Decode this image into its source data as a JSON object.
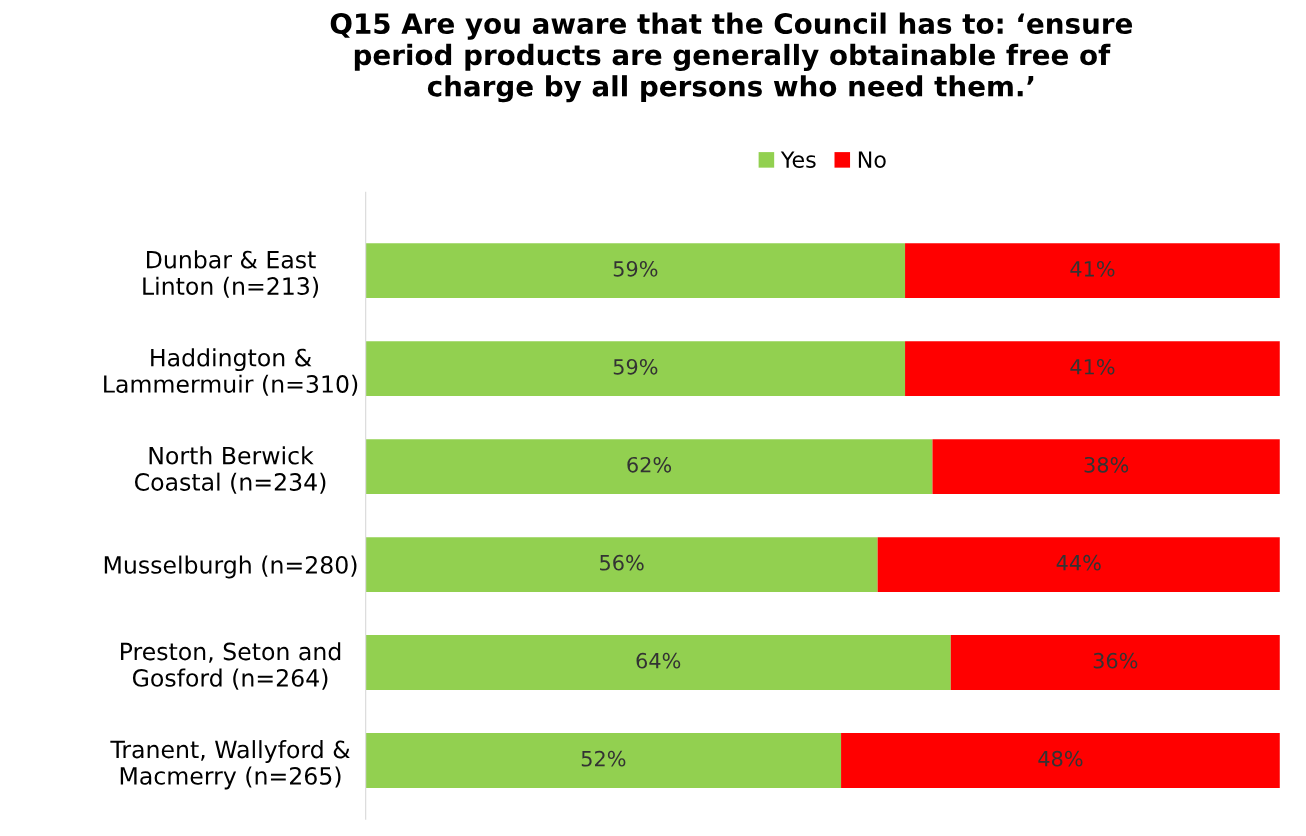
{
  "chart_data": {
    "type": "bar",
    "orientation": "horizontal",
    "stacked": true,
    "title": "Q15 Are you aware that the Council has to: ‘ensure\nperiod products are generally obtainable free of\ncharge by all persons who need them.’",
    "categories": [
      "Dunbar & East\nLinton (n=213)",
      "Haddington &\nLammermuir (n=310)",
      "North Berwick\nCoastal (n=234)",
      "Musselburgh (n=280)",
      "Preston, Seton and\nGosford (n=264)",
      "Tranent, Wallyford &\nMacmerry (n=265)"
    ],
    "series": [
      {
        "name": "Yes",
        "color": "#92d050",
        "values": [
          59,
          59,
          62,
          56,
          64,
          52
        ],
        "value_labels": [
          "59%",
          "59%",
          "62%",
          "56%",
          "64%",
          "52%"
        ]
      },
      {
        "name": "No",
        "color": "#ff0000",
        "values": [
          41,
          41,
          38,
          44,
          36,
          48
        ],
        "value_labels": [
          "41%",
          "41%",
          "38%",
          "44%",
          "36%",
          "48%"
        ]
      }
    ],
    "tick_labels": "y",
    "legend": "top",
    "grid": false
  }
}
